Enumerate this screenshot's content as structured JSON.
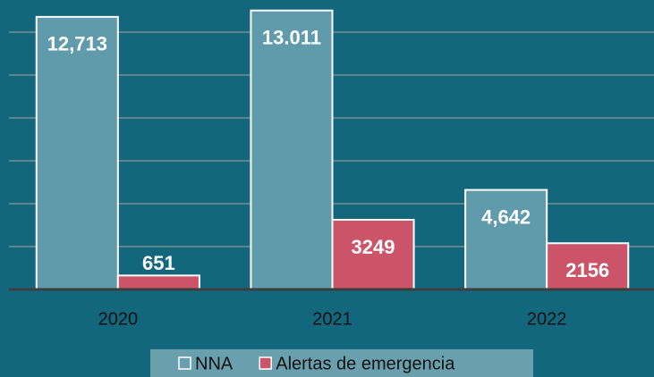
{
  "chart_data": {
    "type": "bar",
    "categories": [
      "2020",
      "2021",
      "2022"
    ],
    "series": [
      {
        "name": "NNA",
        "color": "#5f9bab",
        "values": [
          12713,
          13011,
          4642
        ],
        "value_labels": [
          "12,713",
          "13.011",
          "4,642"
        ]
      },
      {
        "name": "Alertas de emergencia",
        "color": "#cc5468",
        "values": [
          651,
          3249,
          2156
        ]
      }
    ],
    "ylim": [
      0,
      13500
    ],
    "yticks": [
      0,
      2000,
      4000,
      6000,
      8000,
      10000,
      12000
    ],
    "grid": true,
    "legend": "bottom"
  }
}
